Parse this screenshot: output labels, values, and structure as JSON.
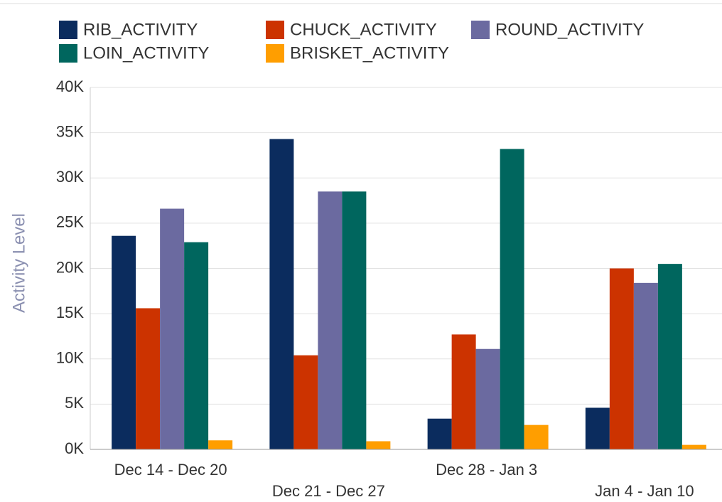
{
  "chart_data": {
    "type": "bar",
    "y_axis_label": "Activity Level",
    "categories": [
      "Dec 14 - Dec 20",
      "Dec 21 - Dec 27",
      "Dec 28 - Jan 3",
      "Jan 4 - Jan 10"
    ],
    "series": [
      {
        "name": "RIB_ACTIVITY",
        "color": "#0b2c5e",
        "values": [
          23600,
          34300,
          3400,
          4600
        ]
      },
      {
        "name": "CHUCK_ACTIVITY",
        "color": "#cc3300",
        "values": [
          15600,
          10400,
          12700,
          20000
        ]
      },
      {
        "name": "ROUND_ACTIVITY",
        "color": "#6b6aa0",
        "values": [
          26600,
          28500,
          11100,
          18400
        ]
      },
      {
        "name": "LOIN_ACTIVITY",
        "color": "#00665e",
        "values": [
          22900,
          28500,
          33200,
          20500
        ]
      },
      {
        "name": "BRISKET_ACTIVITY",
        "color": "#ff9e00",
        "values": [
          1000,
          900,
          2700,
          500
        ]
      }
    ],
    "ylim": [
      0,
      40000
    ],
    "yticks": [
      {
        "value": 0,
        "label": "0K"
      },
      {
        "value": 5000,
        "label": "5K"
      },
      {
        "value": 10000,
        "label": "10K"
      },
      {
        "value": 15000,
        "label": "15K"
      },
      {
        "value": 20000,
        "label": "20K"
      },
      {
        "value": 25000,
        "label": "25K"
      },
      {
        "value": 30000,
        "label": "30K"
      },
      {
        "value": 35000,
        "label": "35K"
      },
      {
        "value": 40000,
        "label": "40K"
      }
    ],
    "grid": true,
    "legend": "top"
  }
}
